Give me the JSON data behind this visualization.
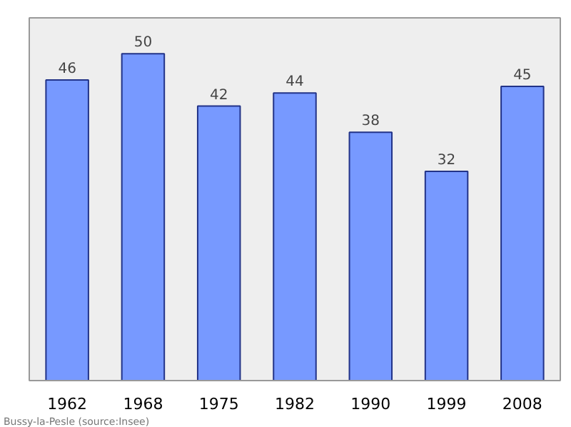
{
  "chart_data": {
    "type": "bar",
    "categories": [
      "1962",
      "1968",
      "1975",
      "1982",
      "1990",
      "1999",
      "2008"
    ],
    "values": [
      46,
      50,
      42,
      44,
      38,
      32,
      45
    ],
    "color": "#7799ff",
    "data_labels": true,
    "annotations": [
      "Bussy-la-Pesle    (source:Insee)"
    ]
  }
}
